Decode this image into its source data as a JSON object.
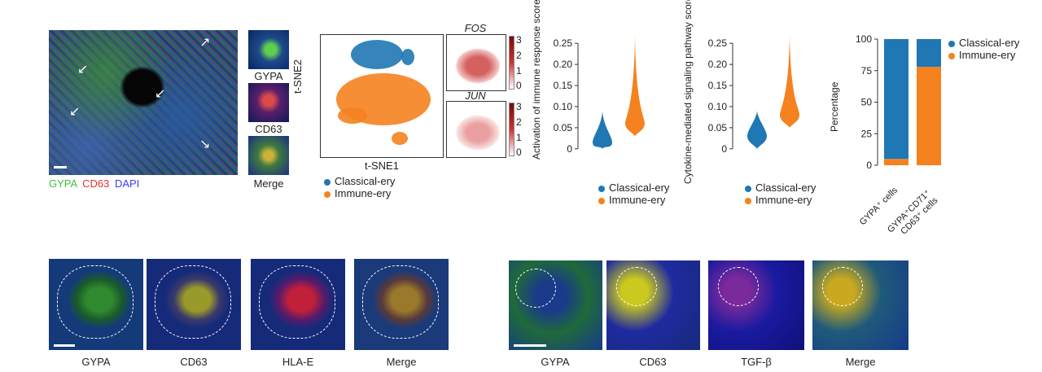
{
  "colors": {
    "classical": "#1f77b4",
    "immune": "#f5821f",
    "gypa": "#3fbf3f",
    "cd63": "#e53030",
    "dapi": "#3b3bff"
  },
  "panel_tissue": {
    "stain_gypa": "GYPA",
    "stain_cd63": "CD63",
    "stain_dapi": "DAPI",
    "inset_labels": [
      "GYPA",
      "CD63",
      "Merge"
    ]
  },
  "tsne": {
    "xlabel": "t-SNE1",
    "ylabel": "t-SNE2",
    "gene1": "FOS",
    "gene2": "JUN",
    "colorbar_ticks": [
      "3",
      "2",
      "1",
      "0"
    ]
  },
  "legend": {
    "classical": "Classical-ery",
    "immune": "Immune-ery"
  },
  "bottom_left_labels": [
    "GYPA",
    "CD63",
    "HLA-E",
    "Merge"
  ],
  "bottom_right_labels": [
    "GYPA",
    "CD63",
    "TGF-β",
    "Merge"
  ],
  "chart_data": [
    {
      "type": "violin",
      "ylabel": "Activation of immune response score",
      "yticks": [
        0,
        0.05,
        0.1,
        0.15,
        0.2,
        0.25
      ],
      "ytick_labels": [
        "0",
        "0.05",
        "0.10",
        "0.15",
        "0.20",
        "0.25"
      ],
      "ylim": [
        -0.01,
        0.26
      ],
      "series": [
        {
          "name": "Classical-ery",
          "median": 0.015,
          "min": 0.0,
          "max": 0.09
        },
        {
          "name": "Immune-ery",
          "median": 0.06,
          "min": 0.03,
          "max": 0.27
        }
      ]
    },
    {
      "type": "violin",
      "ylabel": "Cytokine-mediated signaling pathway score",
      "yticks": [
        0,
        0.05,
        0.1,
        0.15,
        0.2,
        0.25
      ],
      "ytick_labels": [
        "0",
        "0.05",
        "0.10",
        "0.15",
        "0.20",
        "0.25"
      ],
      "ylim": [
        -0.01,
        0.26
      ],
      "series": [
        {
          "name": "Classical-ery",
          "median": 0.03,
          "min": 0.0,
          "max": 0.09
        },
        {
          "name": "Immune-ery",
          "median": 0.08,
          "min": 0.05,
          "max": 0.27
        }
      ]
    },
    {
      "type": "bar",
      "stacked": true,
      "ylabel": "Percentage",
      "yticks": [
        0,
        25,
        50,
        75,
        100
      ],
      "ytick_labels": [
        "0",
        "25",
        "50",
        "75",
        "100"
      ],
      "ylim": [
        0,
        100
      ],
      "categories": [
        "GYPA⁺ cells",
        "GYPA⁺CD71⁺CD63⁺ cells"
      ],
      "category_lines": [
        [
          "GYPA⁺ cells"
        ],
        [
          "GYPA⁺CD71⁺",
          "CD63⁺ cells"
        ]
      ],
      "series": [
        {
          "name": "Immune-ery",
          "values": [
            5,
            78
          ]
        },
        {
          "name": "Classical-ery",
          "values": [
            95,
            22
          ]
        }
      ],
      "legend_position": "top-right"
    }
  ]
}
